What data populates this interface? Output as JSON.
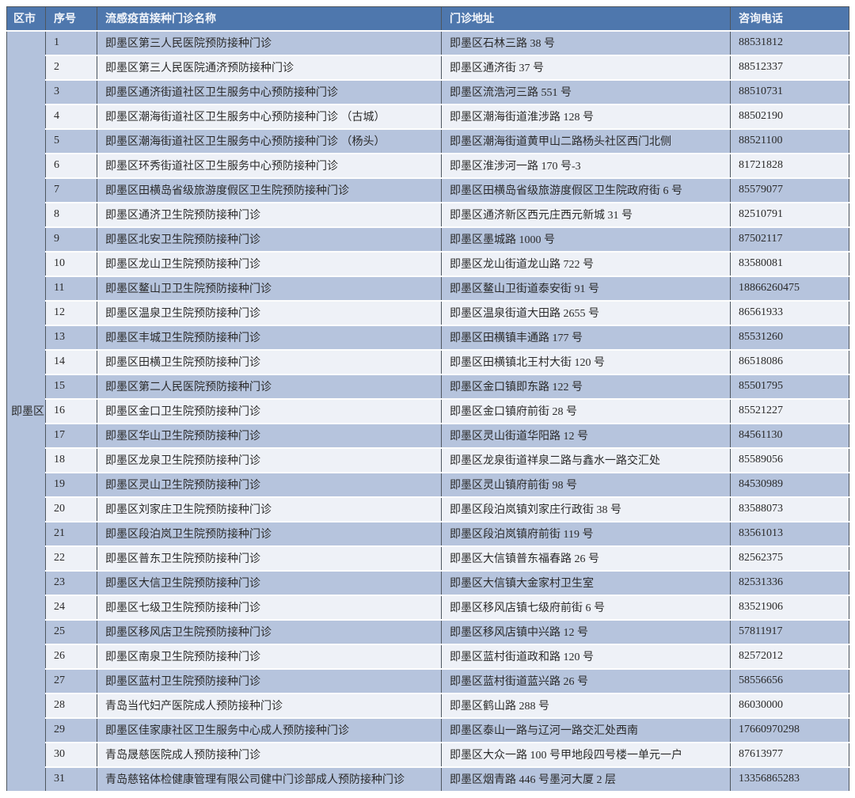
{
  "table": {
    "district": "即墨区",
    "columns": [
      "区市",
      "序号",
      "流感疫苗接种门诊名称",
      "门诊地址",
      "咨询电话"
    ],
    "rows": [
      {
        "no": "1",
        "name": "即墨区第三人民医院预防接种门诊",
        "address": "即墨区石林三路 38 号",
        "phone": "88531812"
      },
      {
        "no": "2",
        "name": "即墨区第三人民医院通济预防接种门诊",
        "address": "即墨区通济街 37 号",
        "phone": "88512337"
      },
      {
        "no": "3",
        "name": "即墨区通济街道社区卫生服务中心预防接种门诊",
        "address": "即墨区流浩河三路 551 号",
        "phone": "88510731"
      },
      {
        "no": "4",
        "name": "即墨区潮海街道社区卫生服务中心预防接种门诊 （古城）",
        "address": "即墨区潮海街道淮涉路 128 号",
        "phone": "88502190"
      },
      {
        "no": "5",
        "name": "即墨区潮海街道社区卫生服务中心预防接种门诊 （杨头）",
        "address": "即墨区潮海街道黄甲山二路杨头社区西门北侧",
        "phone": "88521100"
      },
      {
        "no": "6",
        "name": "即墨区环秀街道社区卫生服务中心预防接种门诊",
        "address": "即墨区淮涉河一路 170 号-3",
        "phone": "81721828"
      },
      {
        "no": "7",
        "name": "即墨区田横岛省级旅游度假区卫生院预防接种门诊",
        "address": "即墨区田横岛省级旅游度假区卫生院政府街 6 号",
        "phone": "85579077"
      },
      {
        "no": "8",
        "name": "即墨区通济卫生院预防接种门诊",
        "address": "即墨区通济新区西元庄西元新城 31 号",
        "phone": "82510791"
      },
      {
        "no": "9",
        "name": "即墨区北安卫生院预防接种门诊",
        "address": "即墨区墨城路 1000 号",
        "phone": "87502117"
      },
      {
        "no": "10",
        "name": "即墨区龙山卫生院预防接种门诊",
        "address": "即墨区龙山街道龙山路 722 号",
        "phone": "83580081"
      },
      {
        "no": "11",
        "name": "即墨区鳌山卫卫生院预防接种门诊",
        "address": "即墨区鳌山卫街道泰安街 91 号",
        "phone": "18866260475"
      },
      {
        "no": "12",
        "name": "即墨区温泉卫生院预防接种门诊",
        "address": "即墨区温泉街道大田路 2655 号",
        "phone": "86561933"
      },
      {
        "no": "13",
        "name": "即墨区丰城卫生院预防接种门诊",
        "address": "即墨区田横镇丰通路 177 号",
        "phone": "85531260"
      },
      {
        "no": "14",
        "name": "即墨区田横卫生院预防接种门诊",
        "address": "即墨区田横镇北王村大街 120 号",
        "phone": "86518086"
      },
      {
        "no": "15",
        "name": "即墨区第二人民医院预防接种门诊",
        "address": "即墨区金口镇即东路 122 号",
        "phone": "85501795"
      },
      {
        "no": "16",
        "name": "即墨区金口卫生院预防接种门诊",
        "address": "即墨区金口镇府前街 28 号",
        "phone": "85521227"
      },
      {
        "no": "17",
        "name": "即墨区华山卫生院预防接种门诊",
        "address": "即墨区灵山街道华阳路 12 号",
        "phone": "84561130"
      },
      {
        "no": "18",
        "name": "即墨区龙泉卫生院预防接种门诊",
        "address": "即墨区龙泉街道祥泉二路与鑫水一路交汇处",
        "phone": "85589056"
      },
      {
        "no": "19",
        "name": "即墨区灵山卫生院预防接种门诊",
        "address": "即墨区灵山镇府前街 98 号",
        "phone": "84530989"
      },
      {
        "no": "20",
        "name": "即墨区刘家庄卫生院预防接种门诊",
        "address": "即墨区段泊岚镇刘家庄行政街 38 号",
        "phone": "83588073"
      },
      {
        "no": "21",
        "name": "即墨区段泊岚卫生院预防接种门诊",
        "address": "即墨区段泊岚镇府前街 119 号",
        "phone": "83561013"
      },
      {
        "no": "22",
        "name": "即墨区普东卫生院预防接种门诊",
        "address": "即墨区大信镇普东福春路 26 号",
        "phone": "82562375"
      },
      {
        "no": "23",
        "name": "即墨区大信卫生院预防接种门诊",
        "address": "即墨区大信镇大金家村卫生室",
        "phone": "82531336"
      },
      {
        "no": "24",
        "name": "即墨区七级卫生院预防接种门诊",
        "address": "即墨区移风店镇七级府前街 6 号",
        "phone": "83521906"
      },
      {
        "no": "25",
        "name": "即墨区移风店卫生院预防接种门诊",
        "address": "即墨区移风店镇中兴路 12 号",
        "phone": "57811917"
      },
      {
        "no": "26",
        "name": "即墨区南泉卫生院预防接种门诊",
        "address": "即墨区蓝村街道政和路 120 号",
        "phone": "82572012"
      },
      {
        "no": "27",
        "name": "即墨区蓝村卫生院预防接种门诊",
        "address": "即墨区蓝村街道蓝兴路 26 号",
        "phone": "58556656"
      },
      {
        "no": "28",
        "name": "青岛当代妇产医院成人预防接种门诊",
        "address": "即墨区鹤山路 288 号",
        "phone": "86030000"
      },
      {
        "no": "29",
        "name": "即墨区佳家康社区卫生服务中心成人预防接种门诊",
        "address": "即墨区泰山一路与辽河一路交汇处西南",
        "phone": "17660970298"
      },
      {
        "no": "30",
        "name": "青岛晟慈医院成人预防接种门诊",
        "address": "即墨区大众一路 100 号甲地段四号楼一单元一户",
        "phone": "87613977"
      },
      {
        "no": "31",
        "name": "青岛慈铭体检健康管理有限公司健中门诊部成人预防接种门诊",
        "address": "即墨区烟青路 446 号墨河大厦 2 层",
        "phone": "13356865283"
      }
    ]
  },
  "colors": {
    "header_bg": "#4e77ad",
    "header_text": "#f2f5fa",
    "row_odd_bg": "#b6c4dd",
    "row_even_bg": "#eef1f7",
    "district_cell_bg": "#b3c2dc",
    "vertical_border": "#4e565f",
    "horizontal_border": "#fdfdfd",
    "body_text": "#2a2a2a"
  }
}
